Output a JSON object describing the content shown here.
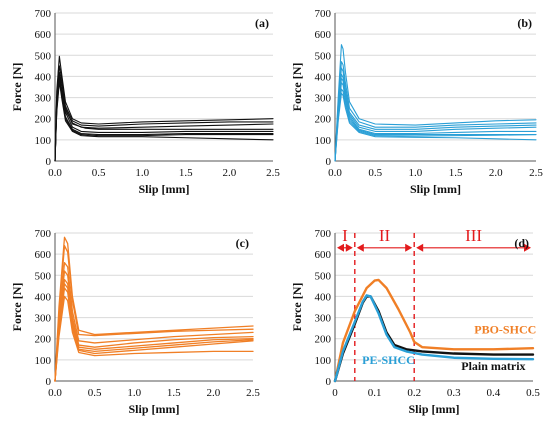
{
  "colors": {
    "black": "#111111",
    "blue": "#2a9fd6",
    "orange": "#f07f26",
    "red": "#e31a1c",
    "grid": "#d9d9d9"
  },
  "chart_data": [
    {
      "type": "line",
      "panel_label": "(a)",
      "xlabel": "Slip [mm]",
      "ylabel": "Force [N]",
      "xlim": [
        0,
        2.5
      ],
      "ylim": [
        0,
        700
      ],
      "xticks": [
        0.0,
        0.5,
        1.0,
        1.5,
        2.0,
        2.5
      ],
      "xtick_labels": [
        "0.0",
        "0.5",
        "1.0",
        "1.5",
        "2.0",
        "2.5"
      ],
      "yticks": [
        0,
        100,
        200,
        300,
        400,
        500,
        600,
        700
      ],
      "ytick_labels": [
        "0",
        "100",
        "200",
        "300",
        "400",
        "500",
        "600",
        "700"
      ],
      "grid": "horizontal",
      "color": "black",
      "stroke": 1.1,
      "series": [
        {
          "x": [
            0,
            0.02,
            0.05,
            0.08,
            0.12,
            0.2,
            0.3,
            0.5,
            1.0,
            1.5,
            2.0,
            2.5
          ],
          "y": [
            0,
            330,
            495,
            400,
            280,
            200,
            180,
            175,
            185,
            190,
            195,
            200
          ]
        },
        {
          "x": [
            0,
            0.02,
            0.05,
            0.08,
            0.12,
            0.2,
            0.3,
            0.5,
            1.0,
            1.5,
            2.0,
            2.5
          ],
          "y": [
            0,
            300,
            450,
            380,
            260,
            190,
            170,
            165,
            175,
            180,
            185,
            185
          ]
        },
        {
          "x": [
            0,
            0.02,
            0.04,
            0.07,
            0.12,
            0.2,
            0.3,
            0.5,
            1.0,
            1.5,
            2.0,
            2.5
          ],
          "y": [
            0,
            280,
            430,
            350,
            240,
            180,
            160,
            155,
            160,
            165,
            170,
            175
          ]
        },
        {
          "x": [
            0,
            0.02,
            0.05,
            0.08,
            0.12,
            0.2,
            0.35,
            0.5,
            1.0,
            1.5,
            2.0,
            2.5
          ],
          "y": [
            0,
            270,
            420,
            360,
            250,
            175,
            155,
            150,
            150,
            150,
            150,
            150
          ]
        },
        {
          "x": [
            0,
            0.02,
            0.05,
            0.08,
            0.12,
            0.2,
            0.3,
            0.5,
            1.0,
            1.5,
            2.0,
            2.5
          ],
          "y": [
            0,
            260,
            410,
            330,
            230,
            160,
            140,
            135,
            135,
            140,
            140,
            140
          ]
        },
        {
          "x": [
            0,
            0.02,
            0.05,
            0.08,
            0.12,
            0.2,
            0.3,
            0.5,
            1.0,
            1.5,
            2.0,
            2.5
          ],
          "y": [
            0,
            250,
            400,
            320,
            210,
            150,
            130,
            125,
            125,
            130,
            130,
            130
          ]
        },
        {
          "x": [
            0,
            0.02,
            0.05,
            0.08,
            0.12,
            0.2,
            0.3,
            0.5,
            1.0,
            1.5,
            2.0,
            2.5
          ],
          "y": [
            0,
            240,
            390,
            300,
            200,
            145,
            125,
            120,
            120,
            125,
            125,
            125
          ]
        },
        {
          "x": [
            0,
            0.02,
            0.05,
            0.08,
            0.12,
            0.2,
            0.3,
            0.5,
            1.0,
            1.5,
            2.0,
            2.5
          ],
          "y": [
            0,
            230,
            375,
            290,
            190,
            140,
            120,
            115,
            115,
            110,
            105,
            100
          ]
        }
      ]
    },
    {
      "type": "line",
      "panel_label": "(b)",
      "xlabel": "Slip [mm]",
      "ylabel": "Force [N]",
      "xlim": [
        0,
        2.5
      ],
      "ylim": [
        0,
        700
      ],
      "xticks": [
        0.0,
        0.5,
        1.0,
        1.5,
        2.0,
        2.5
      ],
      "xtick_labels": [
        "0.0",
        "0.5",
        "1.0",
        "1.5",
        "2.0",
        "2.5"
      ],
      "yticks": [
        0,
        100,
        200,
        300,
        400,
        500,
        600,
        700
      ],
      "ytick_labels": [
        "0",
        "100",
        "200",
        "300",
        "400",
        "500",
        "600",
        "700"
      ],
      "grid": "horizontal",
      "color": "blue",
      "stroke": 1.1,
      "series": [
        {
          "x": [
            0,
            0.04,
            0.08,
            0.1,
            0.13,
            0.18,
            0.3,
            0.5,
            1.0,
            1.5,
            2.0,
            2.5
          ],
          "y": [
            0,
            300,
            550,
            530,
            420,
            280,
            200,
            175,
            170,
            180,
            190,
            195
          ]
        },
        {
          "x": [
            0,
            0.04,
            0.08,
            0.1,
            0.13,
            0.18,
            0.3,
            0.5,
            1.0,
            1.5,
            2.0,
            2.5
          ],
          "y": [
            0,
            280,
            470,
            455,
            370,
            250,
            185,
            160,
            160,
            170,
            175,
            180
          ]
        },
        {
          "x": [
            0,
            0.04,
            0.08,
            0.1,
            0.13,
            0.18,
            0.3,
            0.5,
            1.0,
            1.5,
            2.0,
            2.5
          ],
          "y": [
            0,
            260,
            440,
            425,
            340,
            230,
            170,
            150,
            150,
            160,
            165,
            170
          ]
        },
        {
          "x": [
            0,
            0.04,
            0.08,
            0.1,
            0.13,
            0.18,
            0.3,
            0.5,
            1.0,
            1.5,
            2.0,
            2.5
          ],
          "y": [
            0,
            240,
            410,
            395,
            320,
            220,
            160,
            140,
            140,
            150,
            155,
            160
          ]
        },
        {
          "x": [
            0,
            0.04,
            0.08,
            0.1,
            0.13,
            0.18,
            0.3,
            0.5,
            1.0,
            1.5,
            2.0,
            2.5
          ],
          "y": [
            0,
            230,
            390,
            380,
            300,
            210,
            150,
            130,
            130,
            135,
            140,
            140
          ]
        },
        {
          "x": [
            0,
            0.04,
            0.08,
            0.1,
            0.13,
            0.18,
            0.3,
            0.5,
            1.0,
            1.5,
            2.0,
            2.5
          ],
          "y": [
            0,
            220,
            370,
            360,
            290,
            200,
            145,
            125,
            125,
            125,
            125,
            125
          ]
        },
        {
          "x": [
            0,
            0.04,
            0.08,
            0.1,
            0.13,
            0.18,
            0.3,
            0.5,
            1.0,
            1.5,
            2.0,
            2.5
          ],
          "y": [
            0,
            200,
            340,
            330,
            270,
            190,
            140,
            120,
            118,
            120,
            122,
            125
          ]
        },
        {
          "x": [
            0,
            0.04,
            0.08,
            0.1,
            0.13,
            0.18,
            0.3,
            0.5,
            1.0,
            1.5,
            2.0,
            2.5
          ],
          "y": [
            0,
            190,
            320,
            310,
            250,
            180,
            135,
            115,
            112,
            110,
            105,
            100
          ]
        }
      ]
    },
    {
      "type": "line",
      "panel_label": "(c)",
      "xlabel": "Slip [mm]",
      "ylabel": "Force [N]",
      "xlim": [
        0,
        2.5
      ],
      "ylim": [
        0,
        700
      ],
      "xticks": [
        0.0,
        0.5,
        1.0,
        1.5,
        2.0,
        2.5
      ],
      "xtick_labels": [
        "0.0",
        "0.5",
        "1.0",
        "1.5",
        "2.0",
        "2.5"
      ],
      "yticks": [
        0,
        100,
        200,
        300,
        400,
        500,
        600,
        700
      ],
      "ytick_labels": [
        "0",
        "100",
        "200",
        "300",
        "400",
        "500",
        "600",
        "700"
      ],
      "grid": "horizontal",
      "color": "orange",
      "stroke": 1.3,
      "series": [
        {
          "x": [
            0,
            0.05,
            0.12,
            0.16,
            0.22,
            0.3,
            0.5,
            1.0,
            1.5,
            2.0,
            2.5
          ],
          "y": [
            0,
            350,
            680,
            650,
            400,
            240,
            220,
            230,
            240,
            250,
            260
          ]
        },
        {
          "x": [
            0,
            0.05,
            0.12,
            0.16,
            0.22,
            0.3,
            0.5,
            1.0,
            1.5,
            2.0,
            2.5
          ],
          "y": [
            0,
            320,
            640,
            610,
            380,
            220,
            215,
            225,
            235,
            240,
            245
          ]
        },
        {
          "x": [
            0,
            0.05,
            0.12,
            0.16,
            0.22,
            0.3,
            0.5,
            1.0,
            1.5,
            2.0,
            2.5
          ],
          "y": [
            0,
            290,
            560,
            540,
            330,
            190,
            180,
            195,
            210,
            220,
            230
          ]
        },
        {
          "x": [
            0,
            0.05,
            0.12,
            0.16,
            0.22,
            0.3,
            0.5,
            1.0,
            1.5,
            2.0,
            2.5
          ],
          "y": [
            0,
            270,
            520,
            500,
            300,
            170,
            160,
            180,
            195,
            205,
            210
          ]
        },
        {
          "x": [
            0,
            0.05,
            0.12,
            0.16,
            0.22,
            0.3,
            0.5,
            1.0,
            1.5,
            2.0,
            2.5
          ],
          "y": [
            0,
            250,
            480,
            460,
            280,
            160,
            150,
            165,
            180,
            195,
            200
          ]
        },
        {
          "x": [
            0,
            0.05,
            0.12,
            0.16,
            0.22,
            0.3,
            0.5,
            1.0,
            1.5,
            2.0,
            2.5
          ],
          "y": [
            0,
            240,
            460,
            440,
            260,
            150,
            140,
            155,
            170,
            185,
            195
          ]
        },
        {
          "x": [
            0,
            0.05,
            0.12,
            0.16,
            0.22,
            0.3,
            0.5,
            1.0,
            1.5,
            2.0,
            2.5
          ],
          "y": [
            0,
            230,
            440,
            420,
            250,
            145,
            130,
            145,
            160,
            175,
            190
          ]
        },
        {
          "x": [
            0,
            0.05,
            0.12,
            0.16,
            0.22,
            0.3,
            0.5,
            1.0,
            1.5,
            2.0,
            2.5
          ],
          "y": [
            0,
            210,
            400,
            380,
            230,
            135,
            120,
            130,
            135,
            140,
            140
          ]
        }
      ]
    },
    {
      "type": "line",
      "panel_label": "(d)",
      "xlabel": "Slip [mm]",
      "ylabel": "Force [N]",
      "xlim": [
        0,
        0.5
      ],
      "ylim": [
        0,
        700
      ],
      "xticks": [
        0,
        0.1,
        0.2,
        0.3,
        0.4,
        0.5
      ],
      "xtick_labels": [
        "0",
        "0.1",
        "0.2",
        "0.3",
        "0.4",
        "0.5"
      ],
      "yticks": [
        0,
        100,
        200,
        300,
        400,
        500,
        600,
        700
      ],
      "ytick_labels": [
        "0",
        "100",
        "200",
        "300",
        "400",
        "500",
        "600",
        "700"
      ],
      "grid": "horizontal",
      "stroke": 2.4,
      "series": [
        {
          "name": "PBO-SHCC",
          "color": "orange",
          "x": [
            0,
            0.02,
            0.05,
            0.08,
            0.1,
            0.11,
            0.13,
            0.16,
            0.19,
            0.2,
            0.22,
            0.3,
            0.4,
            0.5
          ],
          "y": [
            0,
            180,
            330,
            440,
            475,
            478,
            440,
            340,
            230,
            185,
            160,
            150,
            150,
            155
          ]
        },
        {
          "name": "Plain matrix",
          "color": "black",
          "x": [
            0,
            0.02,
            0.05,
            0.07,
            0.08,
            0.09,
            0.11,
            0.13,
            0.15,
            0.18,
            0.22,
            0.3,
            0.4,
            0.5
          ],
          "y": [
            0,
            130,
            270,
            370,
            400,
            400,
            330,
            230,
            170,
            150,
            140,
            130,
            125,
            125
          ]
        },
        {
          "name": "PE-SHCC",
          "color": "blue",
          "x": [
            0,
            0.02,
            0.05,
            0.07,
            0.08,
            0.09,
            0.11,
            0.13,
            0.15,
            0.18,
            0.22,
            0.3,
            0.4,
            0.5
          ],
          "y": [
            0,
            140,
            280,
            375,
            405,
            400,
            320,
            220,
            160,
            140,
            125,
            110,
            105,
            103
          ]
        }
      ],
      "region_boundaries": [
        0.05,
        0.2
      ],
      "region_labels": [
        {
          "text": "I",
          "x_from": 0,
          "x_to": 0.05
        },
        {
          "text": "II",
          "x_from": 0.05,
          "x_to": 0.2
        },
        {
          "text": "III",
          "x_from": 0.2,
          "x_to": 0.5
        }
      ],
      "annotations": [
        {
          "text": "PBO-SHCC",
          "color": "orange",
          "x": 0.43,
          "y": 225
        },
        {
          "text": "PE-SHCC",
          "color": "blue",
          "x": 0.135,
          "y": 80
        },
        {
          "text": "Plain matrix",
          "color": "black",
          "x": 0.4,
          "y": 52
        }
      ]
    }
  ]
}
